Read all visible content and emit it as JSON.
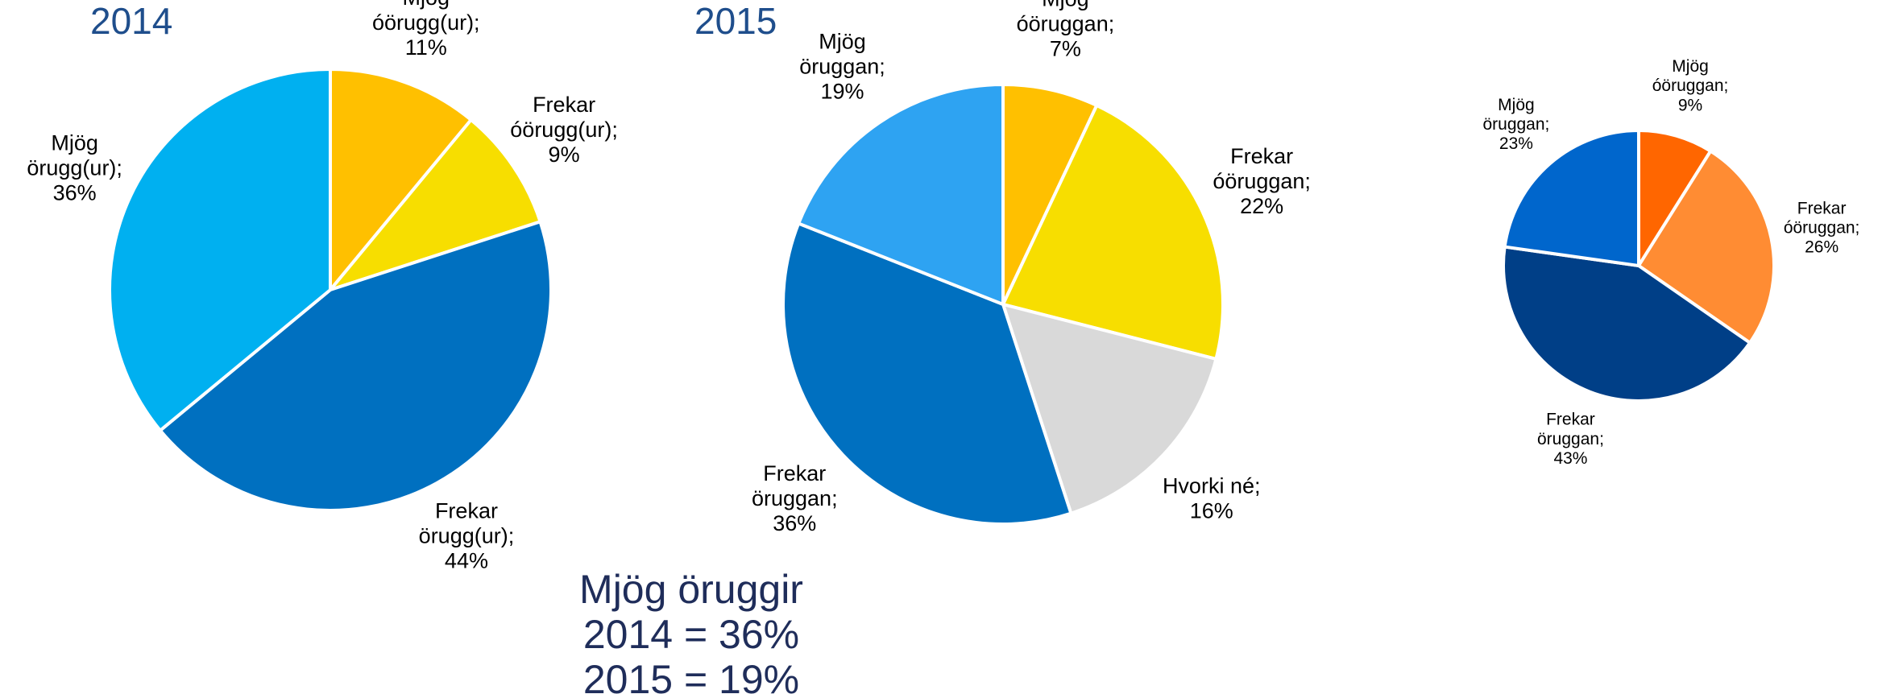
{
  "chart_data": [
    {
      "type": "pie",
      "title": "2014",
      "categories": [
        "Mjög óörugg(ur);",
        "Frekar óörugg(ur);",
        "Frekar örugg(ur);",
        "Mjög örugg(ur);"
      ],
      "values": [
        11,
        9,
        44,
        36
      ],
      "value_labels": [
        "11%",
        "9%",
        "44%",
        "36%"
      ],
      "colors": [
        "#ffc000",
        "#f7de00",
        "#0070c0",
        "#00b0f0"
      ]
    },
    {
      "type": "pie",
      "title": "2015",
      "categories": [
        "Mjög óöruggan;",
        "Frekar óöruggan;",
        "Hvorki né;",
        "Frekar öruggan;",
        "Mjög öruggan;"
      ],
      "values": [
        7,
        22,
        16,
        36,
        19
      ],
      "value_labels": [
        "7%",
        "22%",
        "16%",
        "36%",
        "19%"
      ],
      "colors": [
        "#ffc000",
        "#f7de00",
        "#d9d9d9",
        "#0070c0",
        "#2ea3f2"
      ]
    },
    {
      "type": "pie",
      "categories": [
        "Mjög óöruggan;",
        "Frekar óöruggan;",
        "Frekar öruggan;",
        "Mjög öruggan;"
      ],
      "values": [
        9,
        26,
        43,
        23
      ],
      "value_labels": [
        "9%",
        "26%",
        "43%",
        "23%"
      ],
      "colors": [
        "#ff6600",
        "#ff8c33",
        "#003f87",
        "#0066cc"
      ]
    }
  ],
  "summary": [
    "Mjög öruggir",
    "2014 = 36%",
    "2015 = 19%"
  ]
}
